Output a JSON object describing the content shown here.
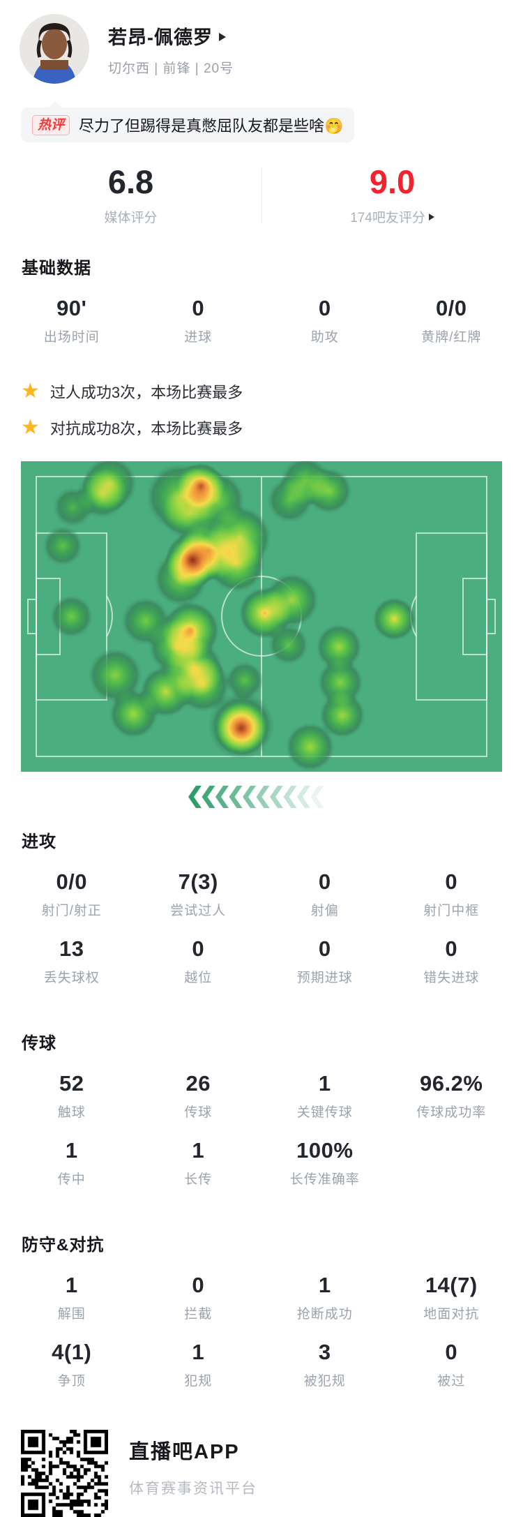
{
  "header": {
    "name": "若昂-佩德罗",
    "team_position": "切尔西 | 前锋 | 20号"
  },
  "hot_comment": {
    "badge": "热评",
    "text": "尽力了但踢得是真憋屈队友都是些啥🤭"
  },
  "ratings": {
    "media": {
      "value": "6.8",
      "label": "媒体评分"
    },
    "fans": {
      "value": "9.0",
      "label": "174吧友评分"
    }
  },
  "highlights": [
    {
      "text": "过人成功3次，本场比赛最多"
    },
    {
      "text": "对抗成功8次，本场比赛最多"
    }
  ],
  "sections": [
    {
      "title": "基础数据",
      "rows": [
        [
          {
            "value": "90'",
            "label": "出场时间"
          },
          {
            "value": "0",
            "label": "进球"
          },
          {
            "value": "0",
            "label": "助攻"
          },
          {
            "value": "0/0",
            "label": "黄牌/红牌"
          }
        ]
      ]
    },
    {
      "title": "进攻",
      "rows": [
        [
          {
            "value": "0/0",
            "label": "射门/射正"
          },
          {
            "value": "7(3)",
            "label": "尝试过人"
          },
          {
            "value": "0",
            "label": "射偏"
          },
          {
            "value": "0",
            "label": "射门中框"
          }
        ],
        [
          {
            "value": "13",
            "label": "丢失球权"
          },
          {
            "value": "0",
            "label": "越位"
          },
          {
            "value": "0",
            "label": "预期进球"
          },
          {
            "value": "0",
            "label": "错失进球"
          }
        ]
      ]
    },
    {
      "title": "传球",
      "rows": [
        [
          {
            "value": "52",
            "label": "触球"
          },
          {
            "value": "26",
            "label": "传球"
          },
          {
            "value": "1",
            "label": "关键传球"
          },
          {
            "value": "96.2%",
            "label": "传球成功率"
          }
        ],
        [
          {
            "value": "1",
            "label": "传中"
          },
          {
            "value": "1",
            "label": "长传"
          },
          {
            "value": "100%",
            "label": "长传准确率"
          },
          null
        ]
      ]
    },
    {
      "title": "防守&对抗",
      "rows": [
        [
          {
            "value": "1",
            "label": "解围"
          },
          {
            "value": "0",
            "label": "拦截"
          },
          {
            "value": "1",
            "label": "抢断成功"
          },
          {
            "value": "14(7)",
            "label": "地面对抗"
          }
        ],
        [
          {
            "value": "4(1)",
            "label": "争顶"
          },
          {
            "value": "1",
            "label": "犯规"
          },
          {
            "value": "3",
            "label": "被犯规"
          },
          {
            "value": "0",
            "label": "被过"
          }
        ]
      ]
    }
  ],
  "heatmap": {
    "pitch_color": "#4bae7e",
    "line_color": "rgba(255,255,255,0.62)",
    "points": [
      [
        0.185,
        0.072,
        40,
        0.55
      ],
      [
        0.168,
        0.106,
        36,
        0.5
      ],
      [
        0.108,
        0.148,
        30,
        0.4
      ],
      [
        0.374,
        0.08,
        34,
        0.9
      ],
      [
        0.33,
        0.115,
        50,
        0.55
      ],
      [
        0.406,
        0.125,
        42,
        0.55
      ],
      [
        0.35,
        0.167,
        40,
        0.5
      ],
      [
        0.591,
        0.064,
        36,
        0.5
      ],
      [
        0.64,
        0.095,
        34,
        0.55
      ],
      [
        0.559,
        0.125,
        34,
        0.45
      ],
      [
        0.087,
        0.273,
        30,
        0.45
      ],
      [
        0.455,
        0.246,
        46,
        0.65
      ],
      [
        0.392,
        0.288,
        44,
        0.7
      ],
      [
        0.357,
        0.318,
        40,
        1.0
      ],
      [
        0.448,
        0.33,
        42,
        0.65
      ],
      [
        0.332,
        0.379,
        40,
        0.55
      ],
      [
        0.507,
        0.489,
        38,
        0.78
      ],
      [
        0.563,
        0.447,
        40,
        0.6
      ],
      [
        0.105,
        0.5,
        32,
        0.5
      ],
      [
        0.556,
        0.591,
        30,
        0.45
      ],
      [
        0.776,
        0.508,
        32,
        0.7
      ],
      [
        0.259,
        0.515,
        36,
        0.5
      ],
      [
        0.353,
        0.545,
        42,
        0.8
      ],
      [
        0.322,
        0.598,
        40,
        0.6
      ],
      [
        0.36,
        0.667,
        42,
        0.65
      ],
      [
        0.378,
        0.72,
        40,
        0.6
      ],
      [
        0.301,
        0.742,
        38,
        0.65
      ],
      [
        0.196,
        0.689,
        40,
        0.55
      ],
      [
        0.234,
        0.814,
        36,
        0.6
      ],
      [
        0.465,
        0.705,
        28,
        0.45
      ],
      [
        0.458,
        0.852,
        50,
        0.5
      ],
      [
        0.458,
        0.86,
        38,
        0.95
      ],
      [
        0.661,
        0.598,
        34,
        0.6
      ],
      [
        0.664,
        0.712,
        34,
        0.55
      ],
      [
        0.668,
        0.818,
        34,
        0.6
      ],
      [
        0.601,
        0.92,
        36,
        0.6
      ]
    ]
  },
  "chevrons": {
    "count": 10,
    "color": "#2e9e6b"
  },
  "footer": {
    "app_name": "直播吧APP",
    "app_desc": "体育赛事资讯平台"
  },
  "colors": {
    "accent_red": "#f2232e",
    "star_yellow": "#ffb71b"
  }
}
